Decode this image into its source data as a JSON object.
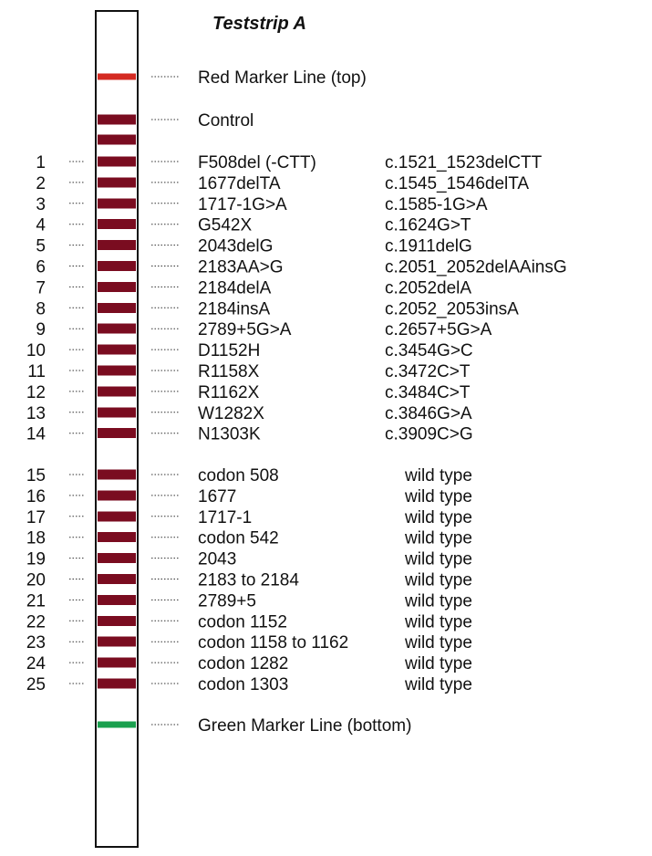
{
  "title": "Teststrip A",
  "colors": {
    "band": "#7a0c20",
    "red_marker": "#d42a22",
    "green_marker": "#1aa04e",
    "strip_border": "#111111"
  },
  "red_marker_label": "Red Marker Line (top)",
  "control_label": "Control",
  "green_marker_label": "Green Marker Line (bottom)",
  "mutation_rows": [
    {
      "number": "1",
      "name": "F508del (-CTT)",
      "hgvs": "c.1521_1523delCTT"
    },
    {
      "number": "2",
      "name": "1677delTA",
      "hgvs": "c.1545_1546delTA"
    },
    {
      "number": "3",
      "name": "1717-1G>A",
      "hgvs": "c.1585-1G>A"
    },
    {
      "number": "4",
      "name": "G542X",
      "hgvs": "c.1624G>T"
    },
    {
      "number": "5",
      "name": "2043delG",
      "hgvs": "c.1911delG"
    },
    {
      "number": "6",
      "name": "2183AA>G",
      "hgvs": "c.2051_2052delAAinsG"
    },
    {
      "number": "7",
      "name": "2184delA",
      "hgvs": "c.2052delA"
    },
    {
      "number": "8",
      "name": "2184insA",
      "hgvs": "c.2052_2053insA"
    },
    {
      "number": "9",
      "name": "2789+5G>A",
      "hgvs": "c.2657+5G>A"
    },
    {
      "number": "10",
      "name": "D1152H",
      "hgvs": "c.3454G>C"
    },
    {
      "number": "11",
      "name": "R1158X",
      "hgvs": "c.3472C>T"
    },
    {
      "number": "12",
      "name": "R1162X",
      "hgvs": "c.3484C>T"
    },
    {
      "number": "13",
      "name": "W1282X",
      "hgvs": "c.3846G>A"
    },
    {
      "number": "14",
      "name": "N1303K",
      "hgvs": "c.3909C>G"
    }
  ],
  "wildtype_rows": [
    {
      "number": "15",
      "name": "codon 508",
      "status": "wild type"
    },
    {
      "number": "16",
      "name": "1677",
      "status": "wild type"
    },
    {
      "number": "17",
      "name": "1717-1",
      "status": "wild type"
    },
    {
      "number": "18",
      "name": "codon 542",
      "status": "wild type"
    },
    {
      "number": "19",
      "name": "2043",
      "status": "wild type"
    },
    {
      "number": "20",
      "name": "2183 to 2184",
      "status": "wild type"
    },
    {
      "number": "21",
      "name": "2789+5",
      "status": "wild type"
    },
    {
      "number": "22",
      "name": "codon 1152",
      "status": "wild type"
    },
    {
      "number": "23",
      "name": "codon 1158 to 1162",
      "status": "wild type"
    },
    {
      "number": "24",
      "name": "codon 1282",
      "status": "wild type"
    },
    {
      "number": "25",
      "name": "codon 1303",
      "status": "wild type"
    }
  ]
}
